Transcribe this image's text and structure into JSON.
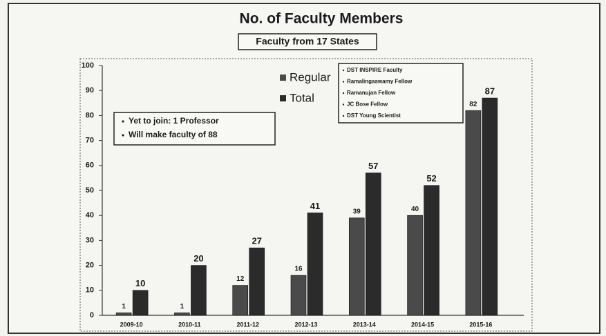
{
  "chart_data": {
    "type": "bar",
    "title": "No. of Faculty Members",
    "subtitle": "Faculty from 17 States",
    "categories": [
      "2009-10",
      "2010-11",
      "2011-12",
      "2012-13",
      "2013-14",
      "2014-15",
      "2015-16"
    ],
    "series": [
      {
        "name": "Regular",
        "color": "#4a4a4a",
        "values": [
          1,
          1,
          12,
          16,
          39,
          40,
          82
        ]
      },
      {
        "name": "Total",
        "color": "#2b2b2b",
        "values": [
          10,
          20,
          27,
          41,
          57,
          52,
          87
        ]
      }
    ],
    "ylim": [
      0,
      100
    ],
    "yticks": [
      0,
      10,
      20,
      30,
      40,
      50,
      60,
      70,
      80,
      90,
      100
    ],
    "annotations": {
      "pending": [
        "Yet to join: 1 Professor",
        "Will make faculty of 88"
      ],
      "fellowships": [
        "DST INSPIRE Faculty",
        "Ramalingaswamy Fellow",
        "Ramanujan Fellow",
        "JC Bose Fellow",
        "DST Young Scientist"
      ]
    }
  }
}
